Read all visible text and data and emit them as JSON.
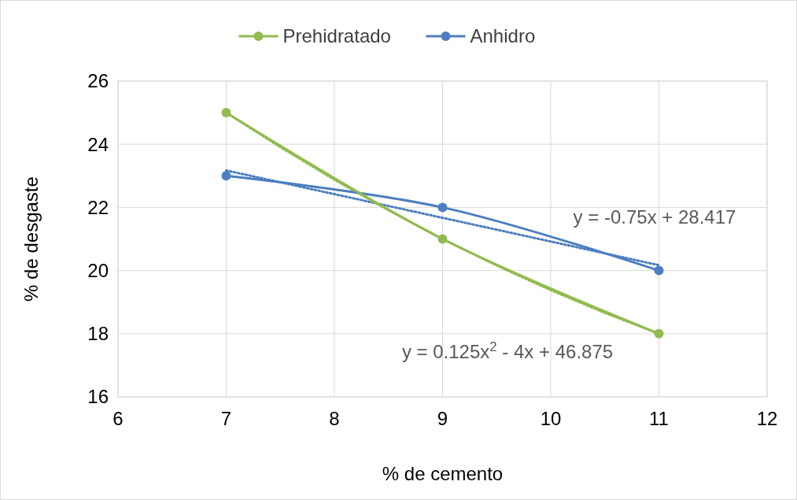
{
  "chart_data": {
    "type": "line",
    "xlabel": "% de cemento",
    "ylabel": "% de desgaste",
    "x": [
      7,
      9,
      11
    ],
    "xlim": [
      6,
      12
    ],
    "xticks": [
      6,
      7,
      8,
      9,
      10,
      11,
      12
    ],
    "ylim": [
      16,
      26
    ],
    "yticks": [
      16,
      18,
      20,
      22,
      24,
      26
    ],
    "grid": true,
    "legend": "top",
    "marker": "circle",
    "series": [
      {
        "name": "Prehidratado",
        "color": "#92bb4f",
        "values": [
          25,
          21,
          18
        ]
      },
      {
        "name": "Anhidro",
        "color": "#4c7ec1",
        "values": [
          23,
          22,
          20
        ]
      },
      {
        "color": "#92bb4f",
        "x": [
          7,
          7.5,
          8,
          8.5,
          9,
          9.5,
          10,
          10.5,
          11
        ],
        "values": [
          25,
          23.91,
          22.88,
          21.91,
          21,
          20.16,
          19.38,
          18.66,
          18
        ],
        "marker": "none",
        "line_style": "dotted"
      },
      {
        "color": "#4c7ec1",
        "x": [
          7,
          11
        ],
        "values": [
          23.17,
          20.17
        ],
        "marker": "none",
        "line_style": "dotted"
      }
    ],
    "annotations": [
      "y = -0.75x + 28.417",
      "y = 0.125x$^{2}$ - 4x + 46.875"
    ]
  }
}
